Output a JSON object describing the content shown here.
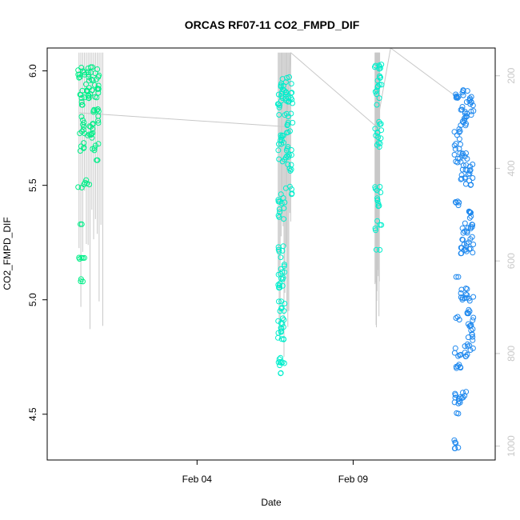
{
  "chart_data": {
    "type": "scatter",
    "title": "ORCAS RF07-11 CO2_FMPD_DIF",
    "xlabel": "Date",
    "ylabel": "CO2_FMPD_DIF",
    "x_unit": "day of February (fractional)",
    "xlim": [
      -0.8,
      13.55
    ],
    "ylim": [
      4.3,
      6.1
    ],
    "x_ticks": [
      {
        "value": 4,
        "label": "Feb 04"
      },
      {
        "value": 9,
        "label": "Feb 09"
      }
    ],
    "y_ticks": [
      4.5,
      5.0,
      5.5,
      6.0
    ],
    "y2_label": "",
    "y2_lim": [
      1030,
      140
    ],
    "y2_ticks": [
      200,
      400,
      600,
      800,
      1000
    ],
    "grid": false,
    "legend": "none",
    "colors": {
      "axes": "#000000",
      "pressure_trace": "#c8c8c8",
      "y2_ticks": "#c8c8c8"
    },
    "series": [
      {
        "color": "#00ee88",
        "bursts": [
          {
            "x": 0.3,
            "y_ranges": [
              [
                5.95,
                6.03
              ],
              [
                5.85,
                5.92
              ],
              [
                5.72,
                5.8
              ],
              [
                5.65,
                5.7
              ],
              [
                5.48,
                5.52
              ],
              [
                5.15,
                5.2
              ],
              [
                5.07,
                5.1
              ],
              [
                5.33,
                5.33
              ]
            ]
          },
          {
            "x": 0.55,
            "y_ranges": [
              [
                5.9,
                6.02
              ],
              [
                5.7,
                5.78
              ],
              [
                5.5,
                5.53
              ],
              [
                5.85,
                5.92
              ]
            ]
          },
          {
            "x": 0.75,
            "y_ranges": [
              [
                5.88,
                6.02
              ],
              [
                5.75,
                5.85
              ],
              [
                5.65,
                5.7
              ],
              [
                5.61,
                5.61
              ]
            ]
          }
        ]
      },
      {
        "color": "#00eecc",
        "bursts": [
          {
            "x": 6.7,
            "y_ranges": [
              [
                5.8,
                5.97
              ],
              [
                5.6,
                5.72
              ],
              [
                5.35,
                5.47
              ],
              [
                5.05,
                5.25
              ],
              [
                4.8,
                5.0
              ],
              [
                4.66,
                4.75
              ]
            ]
          },
          {
            "x": 6.95,
            "y_ranges": [
              [
                5.8,
                5.98
              ],
              [
                5.55,
                5.68
              ],
              [
                5.45,
                5.5
              ],
              [
                5.72,
                5.78
              ]
            ]
          },
          {
            "x": 9.8,
            "y_ranges": [
              [
                5.85,
                6.03
              ],
              [
                5.65,
                5.78
              ],
              [
                5.4,
                5.5
              ],
              [
                5.2,
                5.22
              ],
              [
                5.3,
                5.35
              ]
            ]
          }
        ]
      },
      {
        "color": "#1e88ee",
        "bursts": [
          {
            "x": 12.35,
            "y_ranges": [
              [
                5.85,
                5.9
              ],
              [
                5.6,
                5.75
              ],
              [
                5.4,
                5.45
              ],
              [
                5.1,
                5.1
              ],
              [
                4.7,
                4.8
              ],
              [
                4.5,
                4.6
              ],
              [
                4.35,
                4.4
              ],
              [
                4.9,
                4.93
              ]
            ]
          },
          {
            "x": 12.55,
            "y_ranges": [
              [
                5.75,
                5.92
              ],
              [
                5.5,
                5.65
              ],
              [
                5.2,
                5.35
              ],
              [
                4.95,
                5.05
              ],
              [
                4.55,
                4.6
              ],
              [
                4.75,
                4.8
              ]
            ]
          },
          {
            "x": 12.75,
            "y_ranges": [
              [
                5.8,
                5.92
              ],
              [
                5.5,
                5.6
              ],
              [
                5.2,
                5.4
              ],
              [
                4.78,
                5.02
              ]
            ]
          }
        ]
      }
    ],
    "pressure_trace": {
      "flights": [
        {
          "x": [
            0.22,
            0.98
          ],
          "p_min": 150,
          "p_max": 810
        },
        {
          "x": [
            6.6,
            7.0
          ],
          "p_min": 150,
          "p_max": 850
        },
        {
          "x": [
            9.7,
            9.85
          ],
          "p_min": 150,
          "p_max": 800
        },
        {
          "x": [
            12.35,
            12.85
          ],
          "p_min": 150,
          "p_max": 150
        }
      ],
      "connectors": [
        [
          [
            0.22,
            280
          ],
          [
            6.85,
            310
          ]
        ],
        [
          [
            6.85,
            310
          ],
          [
            7.0,
            150
          ]
        ],
        [
          [
            7.0,
            150
          ],
          [
            9.75,
            310
          ]
        ],
        [
          [
            9.75,
            310
          ],
          [
            10.2,
            135
          ]
        ],
        [
          [
            10.2,
            135
          ],
          [
            12.4,
            250
          ]
        ]
      ]
    }
  }
}
